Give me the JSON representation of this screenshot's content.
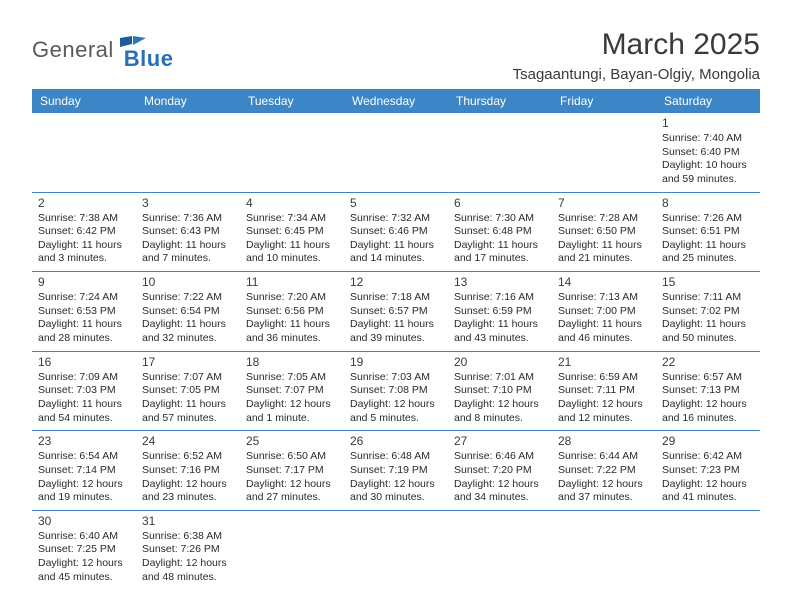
{
  "logo": {
    "text1": "General",
    "text2": "Blue"
  },
  "title": "March 2025",
  "location": "Tsagaantungi, Bayan-Olgiy, Mongolia",
  "colors": {
    "header_bg": "#3c85c6",
    "header_fg": "#ffffff",
    "rule": "#3c85c6",
    "logo_gray": "#5a5a5a",
    "logo_blue": "#2a6fb5",
    "text": "#2a2a2a"
  },
  "weekdays": [
    "Sunday",
    "Monday",
    "Tuesday",
    "Wednesday",
    "Thursday",
    "Friday",
    "Saturday"
  ],
  "weeks": [
    [
      null,
      null,
      null,
      null,
      null,
      null,
      {
        "d": "1",
        "sr": "Sunrise: 7:40 AM",
        "ss": "Sunset: 6:40 PM",
        "dl": "Daylight: 10 hours and 59 minutes."
      }
    ],
    [
      {
        "d": "2",
        "sr": "Sunrise: 7:38 AM",
        "ss": "Sunset: 6:42 PM",
        "dl": "Daylight: 11 hours and 3 minutes."
      },
      {
        "d": "3",
        "sr": "Sunrise: 7:36 AM",
        "ss": "Sunset: 6:43 PM",
        "dl": "Daylight: 11 hours and 7 minutes."
      },
      {
        "d": "4",
        "sr": "Sunrise: 7:34 AM",
        "ss": "Sunset: 6:45 PM",
        "dl": "Daylight: 11 hours and 10 minutes."
      },
      {
        "d": "5",
        "sr": "Sunrise: 7:32 AM",
        "ss": "Sunset: 6:46 PM",
        "dl": "Daylight: 11 hours and 14 minutes."
      },
      {
        "d": "6",
        "sr": "Sunrise: 7:30 AM",
        "ss": "Sunset: 6:48 PM",
        "dl": "Daylight: 11 hours and 17 minutes."
      },
      {
        "d": "7",
        "sr": "Sunrise: 7:28 AM",
        "ss": "Sunset: 6:50 PM",
        "dl": "Daylight: 11 hours and 21 minutes."
      },
      {
        "d": "8",
        "sr": "Sunrise: 7:26 AM",
        "ss": "Sunset: 6:51 PM",
        "dl": "Daylight: 11 hours and 25 minutes."
      }
    ],
    [
      {
        "d": "9",
        "sr": "Sunrise: 7:24 AM",
        "ss": "Sunset: 6:53 PM",
        "dl": "Daylight: 11 hours and 28 minutes."
      },
      {
        "d": "10",
        "sr": "Sunrise: 7:22 AM",
        "ss": "Sunset: 6:54 PM",
        "dl": "Daylight: 11 hours and 32 minutes."
      },
      {
        "d": "11",
        "sr": "Sunrise: 7:20 AM",
        "ss": "Sunset: 6:56 PM",
        "dl": "Daylight: 11 hours and 36 minutes."
      },
      {
        "d": "12",
        "sr": "Sunrise: 7:18 AM",
        "ss": "Sunset: 6:57 PM",
        "dl": "Daylight: 11 hours and 39 minutes."
      },
      {
        "d": "13",
        "sr": "Sunrise: 7:16 AM",
        "ss": "Sunset: 6:59 PM",
        "dl": "Daylight: 11 hours and 43 minutes."
      },
      {
        "d": "14",
        "sr": "Sunrise: 7:13 AM",
        "ss": "Sunset: 7:00 PM",
        "dl": "Daylight: 11 hours and 46 minutes."
      },
      {
        "d": "15",
        "sr": "Sunrise: 7:11 AM",
        "ss": "Sunset: 7:02 PM",
        "dl": "Daylight: 11 hours and 50 minutes."
      }
    ],
    [
      {
        "d": "16",
        "sr": "Sunrise: 7:09 AM",
        "ss": "Sunset: 7:03 PM",
        "dl": "Daylight: 11 hours and 54 minutes."
      },
      {
        "d": "17",
        "sr": "Sunrise: 7:07 AM",
        "ss": "Sunset: 7:05 PM",
        "dl": "Daylight: 11 hours and 57 minutes."
      },
      {
        "d": "18",
        "sr": "Sunrise: 7:05 AM",
        "ss": "Sunset: 7:07 PM",
        "dl": "Daylight: 12 hours and 1 minute."
      },
      {
        "d": "19",
        "sr": "Sunrise: 7:03 AM",
        "ss": "Sunset: 7:08 PM",
        "dl": "Daylight: 12 hours and 5 minutes."
      },
      {
        "d": "20",
        "sr": "Sunrise: 7:01 AM",
        "ss": "Sunset: 7:10 PM",
        "dl": "Daylight: 12 hours and 8 minutes."
      },
      {
        "d": "21",
        "sr": "Sunrise: 6:59 AM",
        "ss": "Sunset: 7:11 PM",
        "dl": "Daylight: 12 hours and 12 minutes."
      },
      {
        "d": "22",
        "sr": "Sunrise: 6:57 AM",
        "ss": "Sunset: 7:13 PM",
        "dl": "Daylight: 12 hours and 16 minutes."
      }
    ],
    [
      {
        "d": "23",
        "sr": "Sunrise: 6:54 AM",
        "ss": "Sunset: 7:14 PM",
        "dl": "Daylight: 12 hours and 19 minutes."
      },
      {
        "d": "24",
        "sr": "Sunrise: 6:52 AM",
        "ss": "Sunset: 7:16 PM",
        "dl": "Daylight: 12 hours and 23 minutes."
      },
      {
        "d": "25",
        "sr": "Sunrise: 6:50 AM",
        "ss": "Sunset: 7:17 PM",
        "dl": "Daylight: 12 hours and 27 minutes."
      },
      {
        "d": "26",
        "sr": "Sunrise: 6:48 AM",
        "ss": "Sunset: 7:19 PM",
        "dl": "Daylight: 12 hours and 30 minutes."
      },
      {
        "d": "27",
        "sr": "Sunrise: 6:46 AM",
        "ss": "Sunset: 7:20 PM",
        "dl": "Daylight: 12 hours and 34 minutes."
      },
      {
        "d": "28",
        "sr": "Sunrise: 6:44 AM",
        "ss": "Sunset: 7:22 PM",
        "dl": "Daylight: 12 hours and 37 minutes."
      },
      {
        "d": "29",
        "sr": "Sunrise: 6:42 AM",
        "ss": "Sunset: 7:23 PM",
        "dl": "Daylight: 12 hours and 41 minutes."
      }
    ],
    [
      {
        "d": "30",
        "sr": "Sunrise: 6:40 AM",
        "ss": "Sunset: 7:25 PM",
        "dl": "Daylight: 12 hours and 45 minutes."
      },
      {
        "d": "31",
        "sr": "Sunrise: 6:38 AM",
        "ss": "Sunset: 7:26 PM",
        "dl": "Daylight: 12 hours and 48 minutes."
      },
      null,
      null,
      null,
      null,
      null
    ]
  ]
}
